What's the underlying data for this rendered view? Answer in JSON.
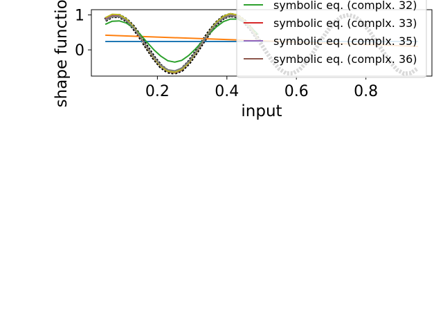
{
  "chart_data": {
    "type": "line",
    "xlabel": "input",
    "ylabel": "shape function",
    "xlim": [
      0.01,
      0.99
    ],
    "ylim": [
      -0.75,
      1.15
    ],
    "xticks": [
      0.2,
      0.4,
      0.6,
      0.8
    ],
    "xtick_labels": [
      "0.2",
      "0.4",
      "0.6",
      "0.8"
    ],
    "yticks": [
      0,
      1
    ],
    "ytick_labels": [
      "0",
      "1"
    ],
    "grid": false,
    "legend_position": "top-right",
    "reference": {
      "x": [
        0.05,
        0.07,
        0.09,
        0.11,
        0.13,
        0.15,
        0.17,
        0.19,
        0.21,
        0.23,
        0.25,
        0.27,
        0.29,
        0.31,
        0.33,
        0.35,
        0.37,
        0.39,
        0.41,
        0.43,
        0.45,
        0.47,
        0.49,
        0.51,
        0.53,
        0.55,
        0.57,
        0.59,
        0.61,
        0.63,
        0.65,
        0.67,
        0.69,
        0.71,
        0.73,
        0.75,
        0.77,
        0.79,
        0.81,
        0.83,
        0.85,
        0.87,
        0.89,
        0.91,
        0.93,
        0.95
      ],
      "y": [
        0.86,
        0.97,
        0.97,
        0.86,
        0.66,
        0.38,
        0.07,
        -0.23,
        -0.47,
        -0.62,
        -0.65,
        -0.57,
        -0.37,
        -0.09,
        0.22,
        0.51,
        0.76,
        0.93,
        1.0,
        0.96,
        0.82,
        0.59,
        0.3,
        -0.01,
        -0.31,
        -0.54,
        -0.67,
        -0.67,
        -0.56,
        -0.34,
        -0.05,
        0.26,
        0.55,
        0.79,
        0.95,
        1.0,
        0.94,
        0.78,
        0.54,
        0.24,
        -0.06,
        -0.35,
        -0.57,
        -0.68,
        -0.66,
        -0.52
      ]
    },
    "series": [
      {
        "color": "#1f77b4",
        "x": [
          0.05,
          0.95
        ],
        "y": [
          0.24,
          0.24
        ]
      },
      {
        "color": "#ff7f0e",
        "x": [
          0.05,
          0.95
        ],
        "y": [
          0.42,
          0.1
        ]
      },
      {
        "name": "symbolic eq. (complx. 32)",
        "color": "#2ca02c",
        "x": [
          0.05,
          0.07,
          0.09,
          0.11,
          0.13,
          0.15,
          0.17,
          0.19,
          0.21,
          0.23,
          0.25,
          0.27,
          0.29,
          0.31,
          0.33,
          0.35,
          0.37,
          0.39,
          0.41,
          0.43,
          0.45,
          0.47,
          0.49
        ],
        "y": [
          0.73,
          0.82,
          0.83,
          0.77,
          0.64,
          0.45,
          0.22,
          0.0,
          -0.18,
          -0.31,
          -0.35,
          -0.3,
          -0.16,
          0.03,
          0.25,
          0.47,
          0.66,
          0.81,
          0.88,
          0.88,
          0.8,
          0.64,
          0.44
        ]
      },
      {
        "name": "symbolic eq. (complx. 33)",
        "color": "#d62728",
        "x": [
          0.05,
          0.07,
          0.09,
          0.11,
          0.13,
          0.15,
          0.17,
          0.19,
          0.21,
          0.23,
          0.25,
          0.27,
          0.29,
          0.31,
          0.33,
          0.35,
          0.37,
          0.39,
          0.41,
          0.43,
          0.45,
          0.47,
          0.49
        ],
        "y": [
          0.88,
          0.98,
          0.98,
          0.87,
          0.67,
          0.39,
          0.08,
          -0.22,
          -0.46,
          -0.6,
          -0.63,
          -0.55,
          -0.36,
          -0.08,
          0.23,
          0.52,
          0.77,
          0.93,
          0.99,
          0.95,
          0.81,
          0.58,
          0.29
        ]
      },
      {
        "name": "symbolic eq. (complx. 35)",
        "color": "#9467bd",
        "x": [
          0.05,
          0.07,
          0.09,
          0.11,
          0.13,
          0.15,
          0.17,
          0.19,
          0.21,
          0.23,
          0.25,
          0.27,
          0.29,
          0.31,
          0.33,
          0.35,
          0.37,
          0.39,
          0.41,
          0.43,
          0.45,
          0.47,
          0.49
        ],
        "y": [
          0.87,
          0.97,
          0.97,
          0.86,
          0.66,
          0.38,
          0.07,
          -0.23,
          -0.47,
          -0.61,
          -0.64,
          -0.56,
          -0.37,
          -0.09,
          0.22,
          0.51,
          0.76,
          0.93,
          1.0,
          0.96,
          0.82,
          0.59,
          0.3
        ]
      },
      {
        "name": "symbolic eq. (complx. 36)",
        "color": "#8c564b",
        "x": [
          0.05,
          0.07,
          0.09,
          0.11,
          0.13,
          0.15,
          0.17,
          0.19,
          0.21,
          0.23,
          0.25,
          0.27,
          0.29,
          0.31,
          0.33,
          0.35,
          0.37,
          0.39,
          0.41,
          0.43,
          0.45,
          0.47,
          0.49
        ],
        "y": [
          0.85,
          0.96,
          0.96,
          0.85,
          0.65,
          0.37,
          0.06,
          -0.24,
          -0.48,
          -0.62,
          -0.66,
          -0.58,
          -0.38,
          -0.1,
          0.21,
          0.5,
          0.75,
          0.92,
          0.99,
          0.95,
          0.81,
          0.58,
          0.29
        ]
      },
      {
        "color": "#bcbd22",
        "x": [
          0.05,
          0.07,
          0.09,
          0.11,
          0.13,
          0.15,
          0.17,
          0.19,
          0.21,
          0.23,
          0.25,
          0.27,
          0.29,
          0.31,
          0.33,
          0.35,
          0.37,
          0.39,
          0.41,
          0.43,
          0.45,
          0.47,
          0.49
        ],
        "y": [
          0.92,
          1.02,
          1.01,
          0.89,
          0.68,
          0.39,
          0.07,
          -0.23,
          -0.47,
          -0.61,
          -0.64,
          -0.56,
          -0.37,
          -0.09,
          0.23,
          0.53,
          0.79,
          0.96,
          1.04,
          1.0,
          0.85,
          0.61,
          0.31
        ]
      },
      {
        "color": "#7f7f7f",
        "x": [
          0.05,
          0.07,
          0.09,
          0.11,
          0.13,
          0.15,
          0.17,
          0.19,
          0.21,
          0.23,
          0.25,
          0.27,
          0.29,
          0.31,
          0.33,
          0.35,
          0.37,
          0.39,
          0.41,
          0.43,
          0.45,
          0.47,
          0.49
        ],
        "y": [
          0.84,
          0.95,
          0.95,
          0.85,
          0.65,
          0.38,
          0.08,
          -0.21,
          -0.44,
          -0.57,
          -0.6,
          -0.52,
          -0.34,
          -0.07,
          0.23,
          0.51,
          0.75,
          0.91,
          0.98,
          0.94,
          0.8,
          0.57,
          0.28
        ]
      }
    ],
    "legend": [
      {
        "label": "symbolic eq. (complx. 32)",
        "color": "#2ca02c"
      },
      {
        "label": "symbolic eq. (complx. 33)",
        "color": "#d62728"
      },
      {
        "label": "symbolic eq. (complx. 35)",
        "color": "#9467bd"
      },
      {
        "label": "symbolic eq. (complx. 36)",
        "color": "#8c564b"
      }
    ]
  }
}
